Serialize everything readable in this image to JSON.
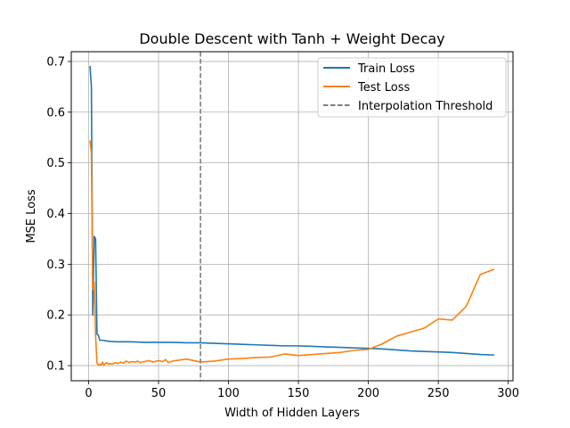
{
  "chart_data": {
    "type": "line",
    "title": "Double Descent with Tanh + Weight Decay",
    "xlabel": "Width of Hidden Layers",
    "ylabel": "MSE Loss",
    "xlim": [
      -12.4,
      303.4
    ],
    "ylim": [
      0.0702,
      0.7192
    ],
    "xticks": [
      0,
      50,
      100,
      150,
      200,
      250,
      300
    ],
    "xtick_labels": [
      "0",
      "50",
      "100",
      "150",
      "200",
      "250",
      "300"
    ],
    "yticks": [
      0.1,
      0.2,
      0.3,
      0.4,
      0.5,
      0.6,
      0.7
    ],
    "ytick_labels": [
      "0.1",
      "0.2",
      "0.3",
      "0.4",
      "0.5",
      "0.6",
      "0.7"
    ],
    "grid": true,
    "legend_position": "upper right",
    "series": [
      {
        "name": "Train Loss",
        "color": "#1f77b4",
        "x": [
          1,
          2,
          3,
          4,
          5,
          6,
          7,
          8,
          10,
          12,
          15,
          20,
          25,
          30,
          40,
          50,
          60,
          70,
          80,
          90,
          100,
          110,
          120,
          130,
          140,
          150,
          160,
          170,
          180,
          190,
          200,
          210,
          220,
          230,
          240,
          250,
          260,
          270,
          280,
          290
        ],
        "y": [
          0.691,
          0.65,
          0.2,
          0.355,
          0.35,
          0.162,
          0.16,
          0.15,
          0.15,
          0.149,
          0.148,
          0.147,
          0.147,
          0.147,
          0.146,
          0.146,
          0.146,
          0.145,
          0.145,
          0.144,
          0.143,
          0.142,
          0.141,
          0.14,
          0.139,
          0.139,
          0.138,
          0.137,
          0.136,
          0.135,
          0.134,
          0.133,
          0.131,
          0.129,
          0.128,
          0.127,
          0.126,
          0.124,
          0.122,
          0.121
        ]
      },
      {
        "name": "Test Loss",
        "color": "#ff7f0e",
        "x": [
          1,
          2,
          3,
          4,
          5,
          6,
          7,
          8,
          9,
          10,
          11,
          12,
          13,
          14,
          15,
          17,
          19,
          21,
          23,
          25,
          27,
          29,
          31,
          33,
          35,
          37,
          40,
          43,
          46,
          50,
          53,
          55,
          57,
          60,
          70,
          80,
          90,
          100,
          110,
          120,
          130,
          140,
          150,
          160,
          170,
          180,
          190,
          200,
          210,
          220,
          230,
          240,
          250,
          260,
          270,
          280,
          290
        ],
        "y": [
          0.544,
          0.52,
          0.25,
          0.265,
          0.16,
          0.105,
          0.101,
          0.103,
          0.101,
          0.107,
          0.101,
          0.104,
          0.106,
          0.103,
          0.104,
          0.103,
          0.106,
          0.104,
          0.107,
          0.105,
          0.109,
          0.106,
          0.108,
          0.107,
          0.109,
          0.106,
          0.108,
          0.11,
          0.107,
          0.11,
          0.108,
          0.112,
          0.106,
          0.109,
          0.113,
          0.107,
          0.109,
          0.113,
          0.114,
          0.116,
          0.117,
          0.123,
          0.12,
          0.122,
          0.124,
          0.126,
          0.13,
          0.132,
          0.143,
          0.158,
          0.166,
          0.174,
          0.192,
          0.19,
          0.217,
          0.28,
          0.29
        ]
      },
      {
        "name": "Interpolation Threshold",
        "color": "#7f7f7f",
        "style": "dashed",
        "x_value": 80
      }
    ]
  }
}
